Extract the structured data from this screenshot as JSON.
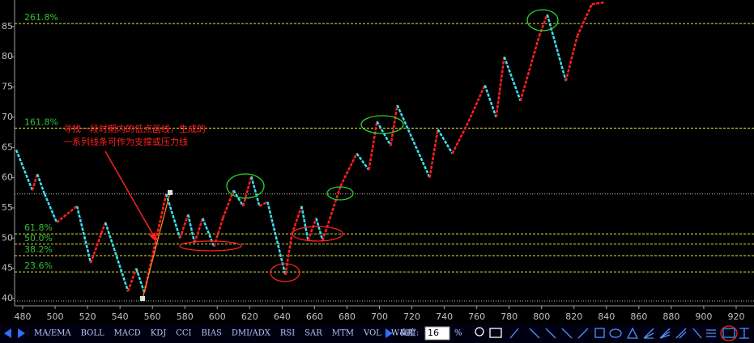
{
  "chart_data": {
    "type": "line",
    "x": [
      476,
      486,
      489,
      493.5,
      501,
      513.5,
      522,
      531,
      545,
      550,
      555,
      568.5,
      577,
      582,
      586,
      591,
      598,
      603.5,
      610,
      616,
      621,
      626,
      631,
      642,
      646,
      652,
      656,
      661,
      665,
      676,
      686,
      693.5,
      698.5,
      707,
      711,
      731,
      736,
      745,
      755,
      765,
      772,
      777,
      787,
      798.5,
      803.5,
      815,
      822,
      831,
      838.5
    ],
    "series": [
      {
        "up_color": "#ff2020",
        "down_color": "#40e0f0",
        "values": [
          64.6,
          57.9,
          60.6,
          57.3,
          52.6,
          55.3,
          45.9,
          52.6,
          41.2,
          45,
          41,
          57.3,
          50,
          53.9,
          49.2,
          53.3,
          48.6,
          53.3,
          57.9,
          55.3,
          60.2,
          55.3,
          56,
          43.9,
          50.6,
          55.3,
          49.6,
          53.3,
          49.6,
          58.6,
          64,
          61.3,
          69.3,
          65.3,
          72,
          60,
          68,
          64,
          69.3,
          75.3,
          70,
          80,
          72.7,
          83.4,
          87,
          76,
          83.4,
          88.7,
          89
        ]
      }
    ],
    "xlim": [
      475,
      931
    ],
    "ylim": [
      38.8,
      89.4
    ],
    "xticks": [
      480,
      500,
      520,
      540,
      560,
      580,
      600,
      620,
      640,
      660,
      680,
      700,
      720,
      740,
      760,
      780,
      800,
      820,
      840,
      860,
      880,
      900,
      920
    ],
    "yticks": [
      40,
      45,
      50,
      55,
      60,
      65,
      70,
      75,
      80,
      85
    ],
    "levels": [
      {
        "label": "261.8%",
        "value": 85.5
      },
      {
        "label": "161.8%",
        "value": 68.2
      },
      {
        "label": "61.8%",
        "value": 50.7
      },
      {
        "label": "50.0%",
        "value": 49
      },
      {
        "label": "38.2%",
        "value": 47.1
      },
      {
        "label": "23.6%",
        "value": 44.4
      }
    ],
    "level_color": "#e0e040",
    "hlines": [
      57.3,
      39.6
    ],
    "annotation": [
      "寻找一段时期内的低点画线，生成的",
      "一系列线条可作为支撑或压力线"
    ]
  },
  "toolbar": {
    "indicators": [
      "MA/EMA",
      "BOLL",
      "MACD",
      "KDJ",
      "CCI",
      "BIAS",
      "DMI/ADX",
      "RSI",
      "SAR",
      "MTM",
      "VOL",
      "W&R"
    ],
    "height_label": "高度:",
    "height_value": "16",
    "unit": "%"
  }
}
